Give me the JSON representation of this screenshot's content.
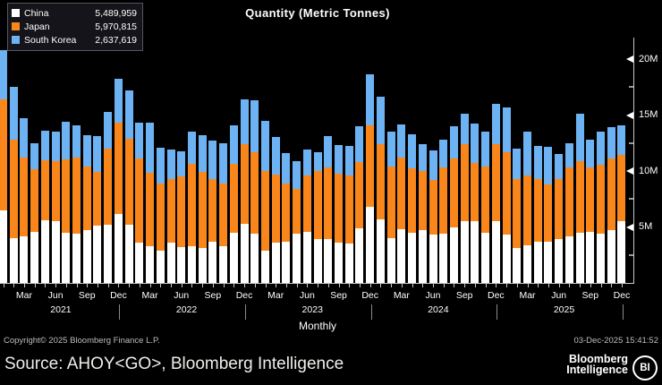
{
  "title": "Quantity (Metric Tonnes)",
  "legend": {
    "items": [
      {
        "label": "China",
        "value": "5,489,959",
        "color": "#ffffff"
      },
      {
        "label": "Japan",
        "value": "5,970,815",
        "color": "#f8861a"
      },
      {
        "label": "South Korea",
        "value": "2,637,619",
        "color": "#6db3f3"
      }
    ]
  },
  "chart_data": {
    "type": "bar",
    "stacked": true,
    "title": "Quantity (Metric Tonnes)",
    "unit": "million metric tonnes",
    "ylim": [
      0,
      21.6
    ],
    "grid": false,
    "legend_position": "top-left",
    "x": [
      "Jan 2021",
      "Feb 2021",
      "Mar 2021",
      "Apr 2021",
      "May 2021",
      "Jun 2021",
      "Jul 2021",
      "Aug 2021",
      "Sep 2021",
      "Oct 2021",
      "Nov 2021",
      "Dec 2021",
      "Jan 2022",
      "Feb 2022",
      "Mar 2022",
      "Apr 2022",
      "May 2022",
      "Jun 2022",
      "Jul 2022",
      "Aug 2022",
      "Sep 2022",
      "Oct 2022",
      "Nov 2022",
      "Dec 2022",
      "Jan 2023",
      "Feb 2023",
      "Mar 2023",
      "Apr 2023",
      "May 2023",
      "Jun 2023",
      "Jul 2023",
      "Aug 2023",
      "Sep 2023",
      "Oct 2023",
      "Nov 2023",
      "Dec 2023",
      "Jan 2024",
      "Feb 2024",
      "Mar 2024",
      "Apr 2024",
      "May 2024",
      "Jun 2024",
      "Jul 2024",
      "Aug 2024",
      "Sep 2024",
      "Oct 2024",
      "Nov 2024",
      "Dec 2024",
      "Jan 2025",
      "Feb 2025",
      "Mar 2025",
      "Apr 2025",
      "May 2025",
      "Jun 2025",
      "Jul 2025",
      "Aug 2025",
      "Sep 2025",
      "Oct 2025",
      "Nov 2025",
      "Dec 2025"
    ],
    "series": [
      {
        "name": "China",
        "color": "#ffffff",
        "values": [
          6.5,
          4.0,
          4.2,
          4.6,
          5.6,
          5.5,
          4.5,
          4.4,
          4.7,
          5.1,
          5.2,
          6.2,
          5.2,
          3.6,
          3.3,
          2.9,
          3.6,
          3.2,
          3.3,
          3.1,
          3.7,
          3.3,
          4.5,
          5.3,
          4.4,
          2.9,
          3.6,
          3.7,
          4.4,
          4.6,
          3.9,
          3.9,
          3.6,
          3.5,
          4.9,
          6.8,
          5.7,
          4.0,
          4.8,
          4.5,
          4.7,
          4.3,
          4.4,
          5.0,
          5.5,
          5.5,
          4.5,
          5.5,
          4.3,
          3.1,
          3.4,
          3.7,
          3.7,
          3.9,
          4.2,
          4.5,
          4.6,
          4.4,
          4.7,
          5.49
        ]
      },
      {
        "name": "Japan",
        "color": "#f8861a",
        "values": [
          9.9,
          8.8,
          7.0,
          5.6,
          5.4,
          5.4,
          6.5,
          6.8,
          5.7,
          4.8,
          6.8,
          8.1,
          7.7,
          7.5,
          6.5,
          6.0,
          5.7,
          6.3,
          7.3,
          6.8,
          5.6,
          5.6,
          6.1,
          7.1,
          7.3,
          7.1,
          6.1,
          5.2,
          4.0,
          5.0,
          6.1,
          6.4,
          6.2,
          6.1,
          5.9,
          7.3,
          6.7,
          6.4,
          6.4,
          5.7,
          5.3,
          4.9,
          5.9,
          6.1,
          6.9,
          5.2,
          5.9,
          6.9,
          7.4,
          6.2,
          6.2,
          5.6,
          5.1,
          5.4,
          6.1,
          6.4,
          5.7,
          6.2,
          6.4,
          5.97
        ]
      },
      {
        "name": "South Korea",
        "color": "#6db3f3",
        "values": [
          4.4,
          4.7,
          3.5,
          2.3,
          2.6,
          2.6,
          3.4,
          2.9,
          2.8,
          3.2,
          3.3,
          3.9,
          4.3,
          3.2,
          4.5,
          3.2,
          2.6,
          2.3,
          2.9,
          3.3,
          3.4,
          3.6,
          3.5,
          4.0,
          4.6,
          4.5,
          3.3,
          2.7,
          2.5,
          2.3,
          1.7,
          2.8,
          2.5,
          2.6,
          3.2,
          4.5,
          4.2,
          3.1,
          3.0,
          3.1,
          2.4,
          2.6,
          2.5,
          2.9,
          2.7,
          3.5,
          3.1,
          3.6,
          4.0,
          2.7,
          3.9,
          2.9,
          3.4,
          2.2,
          2.2,
          4.2,
          2.5,
          2.9,
          2.8,
          2.64
        ]
      }
    ],
    "y_axis": {
      "major_ticks": [
        {
          "value": 5,
          "label": "5M"
        },
        {
          "value": 10,
          "label": "10M"
        },
        {
          "value": 15,
          "label": "15M"
        },
        {
          "value": 20,
          "label": "20M"
        }
      ],
      "minor_ticks": [
        2.5,
        7.5,
        12.5,
        17.5
      ]
    },
    "x_axis": {
      "labeled_months": [
        "Mar",
        "Jun",
        "Sep",
        "Dec"
      ],
      "years": [
        "2021",
        "2022",
        "2023",
        "2024",
        "2025"
      ],
      "axis_label": "Monthly"
    }
  },
  "footer": {
    "copyright": "Copyright© 2025 Bloomberg Finance L.P.",
    "timestamp": "03-Dec-2025 15:41:52",
    "source": "Source: AHOY<GO>, Bloomberg Intelligence",
    "brand_line1": "Bloomberg",
    "brand_line2": "Intelligence",
    "brand_badge": "BI"
  }
}
